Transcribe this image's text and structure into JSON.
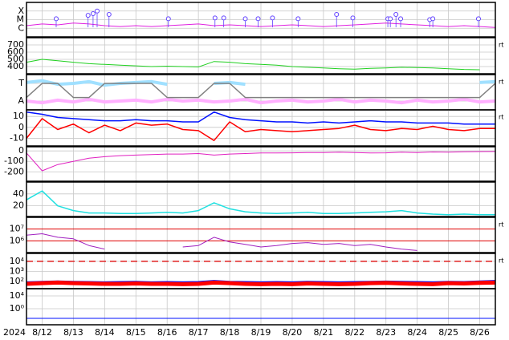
{
  "chart_data": [
    {
      "type": "line",
      "xlim": [
        11.5,
        26.5
      ],
      "ylim": [
        0,
        4
      ],
      "yticks": [
        {
          "value": 1,
          "label": "C"
        },
        {
          "value": 2,
          "label": "M"
        },
        {
          "value": 3,
          "label": "X"
        }
      ],
      "x": [
        11.5,
        12,
        12.5,
        13,
        13.5,
        14,
        14.5,
        15,
        15.5,
        16,
        16.5,
        17,
        17.5,
        18,
        18.5,
        19,
        19.5,
        20,
        20.5,
        21,
        21.5,
        22,
        22.5,
        23,
        23.5,
        24,
        24.5,
        25,
        25.5,
        26,
        26.5
      ],
      "series": [
        {
          "color": "#e020e0",
          "values": [
            1.3,
            1.5,
            1.4,
            1.6,
            1.5,
            1.3,
            1.2,
            1.3,
            1.2,
            1.3,
            1.4,
            1.5,
            1.3,
            1.4,
            1.3,
            1.2,
            1.3,
            1.4,
            1.3,
            1.2,
            1.3,
            1.4,
            1.5,
            1.6,
            1.5,
            1.4,
            1.3,
            1.2,
            1.3,
            1.2,
            1.1
          ]
        }
      ],
      "events": {
        "color": "#6040ff",
        "x": [
          12.45,
          13.47,
          13.63,
          13.76,
          14.14,
          16.04,
          17.53,
          17.81,
          18.5,
          18.91,
          19.37,
          20.19,
          21.42,
          21.94,
          23.06,
          23.14,
          23.32,
          23.47,
          24.4,
          24.5,
          25.96
        ],
        "values": [
          2.1,
          2.5,
          2.7,
          3.0,
          2.6,
          2.1,
          2.2,
          2.2,
          2.1,
          2.1,
          2.2,
          2.1,
          2.6,
          2.2,
          2.1,
          2.1,
          2.6,
          2.1,
          2.0,
          2.1,
          2.1
        ]
      }
    },
    {
      "type": "line",
      "xlim": [
        11.5,
        26.5
      ],
      "ylim": [
        300,
        800
      ],
      "yticks": [
        400,
        500,
        600,
        700
      ],
      "right_label": "rt",
      "x": [
        11.5,
        12,
        12.5,
        13,
        13.5,
        14,
        14.5,
        15,
        15.5,
        16,
        16.5,
        17,
        17.5,
        18,
        18.5,
        19,
        19.5,
        20,
        20.5,
        21,
        21.5,
        22,
        22.5,
        23,
        23.5,
        24,
        24.5,
        25,
        25.5,
        26,
        26.5
      ],
      "series": [
        {
          "color": "#20d020",
          "values": [
            460,
            500,
            480,
            460,
            440,
            430,
            420,
            410,
            400,
            405,
            400,
            395,
            470,
            460,
            440,
            430,
            420,
            400,
            390,
            380,
            370,
            365,
            375,
            380,
            390,
            385,
            380,
            370,
            360,
            355,
            null
          ]
        }
      ]
    },
    {
      "type": "line",
      "xlim": [
        11.5,
        26.5
      ],
      "ylim": [
        0,
        4
      ],
      "yticks": [
        {
          "value": 1,
          "label": "A"
        },
        {
          "value": 3,
          "label": "T"
        }
      ],
      "right_label": "rt",
      "x": [
        11.5,
        12,
        12.5,
        13,
        13.5,
        14,
        14.5,
        15,
        15.5,
        16,
        16.5,
        17,
        17.5,
        18,
        18.5,
        19,
        19.5,
        20,
        20.5,
        21,
        21.5,
        22,
        22.5,
        23,
        23.5,
        24,
        24.5,
        25,
        25.5,
        26,
        26.5
      ],
      "series": [
        {
          "color": "#ffb0ff",
          "width": 4,
          "values": [
            1.0,
            0.8,
            1.1,
            0.9,
            1.2,
            0.9,
            1.0,
            1.1,
            0.9,
            1.2,
            1.0,
            1.1,
            0.9,
            1.0,
            1.2,
            0.8,
            1.0,
            1.1,
            0.9,
            1.0,
            1.2,
            0.9,
            1.1,
            1.0,
            0.8,
            1.1,
            0.9,
            1.0,
            1.2,
            0.9,
            1.0
          ]
        },
        {
          "color": "#a0e0ff",
          "width": 4,
          "values": [
            3.1,
            3.3,
            2.9,
            3.0,
            3.2,
            2.8,
            3.0,
            3.1,
            3.2,
            2.9,
            null,
            null,
            3.0,
            3.1,
            2.9,
            null,
            null,
            null,
            null,
            null,
            null,
            null,
            null,
            null,
            null,
            null,
            null,
            null,
            null,
            3.1,
            3.2
          ]
        },
        {
          "color": "#808080",
          "width": 1.5,
          "values": [
            1.4,
            3,
            3,
            1.4,
            1.4,
            3,
            3,
            3,
            3,
            1.4,
            1.4,
            1.4,
            3,
            3,
            1.4,
            1.4,
            1.4,
            1.4,
            1.4,
            1.4,
            1.4,
            1.4,
            1.4,
            1.4,
            1.4,
            1.4,
            1.4,
            1.4,
            1.4,
            1.4,
            3
          ]
        }
      ]
    },
    {
      "type": "line",
      "xlim": [
        11.5,
        26.5
      ],
      "ylim": [
        -17,
        16
      ],
      "yticks": [
        -10,
        0,
        10
      ],
      "right_label": "rt",
      "x": [
        11.5,
        12,
        12.5,
        13,
        13.5,
        14,
        14.5,
        15,
        15.5,
        16,
        16.5,
        17,
        17.5,
        18,
        18.5,
        19,
        19.5,
        20,
        20.5,
        21,
        21.5,
        22,
        22.5,
        23,
        23.5,
        24,
        24.5,
        25,
        25.5,
        26,
        26.5
      ],
      "series": [
        {
          "color": "#0010ff",
          "width": 1.5,
          "values": [
            14,
            12,
            9,
            8,
            7,
            6,
            6,
            7,
            6,
            6,
            5,
            5,
            14,
            9,
            7,
            6,
            5,
            5,
            4,
            5,
            4,
            5,
            6,
            5,
            5,
            4,
            4,
            4,
            3,
            3,
            3
          ]
        },
        {
          "color": "#ff0000",
          "width": 1.5,
          "values": [
            -10,
            8,
            -2,
            3,
            -5,
            2,
            -3,
            4,
            2,
            3,
            -2,
            -3,
            -12,
            5,
            -4,
            -2,
            -3,
            -4,
            -3,
            -2,
            -1,
            2,
            -2,
            -3,
            -1,
            -2,
            1,
            -2,
            -3,
            -1,
            -1
          ]
        }
      ]
    },
    {
      "type": "line",
      "xlim": [
        11.5,
        26.5
      ],
      "ylim": [
        -290,
        40
      ],
      "yticks": [
        -200,
        -100,
        0
      ],
      "x": [
        11.5,
        12,
        12.5,
        13,
        13.5,
        14,
        14.5,
        15,
        15.5,
        16,
        16.5,
        17,
        17.5,
        18,
        18.5,
        19,
        19.5,
        20,
        20.5,
        21,
        21.5,
        22,
        22.5,
        23,
        23.5,
        24,
        24.5,
        25,
        25.5,
        26,
        26.5
      ],
      "series": [
        {
          "color": "#e020c0",
          "values": [
            -20,
            -190,
            -130,
            -100,
            -70,
            -55,
            -45,
            -40,
            -35,
            -30,
            -30,
            -25,
            -40,
            -30,
            -25,
            -20,
            -20,
            -18,
            -15,
            -15,
            -12,
            -15,
            -20,
            -18,
            -12,
            -15,
            -10,
            -12,
            -8,
            -6,
            -5
          ]
        }
      ]
    },
    {
      "type": "line",
      "xlim": [
        11.5,
        26.5
      ],
      "ylim": [
        2,
        60
      ],
      "yticks": [
        20,
        40
      ],
      "x": [
        11.5,
        12,
        12.5,
        13,
        13.5,
        14,
        14.5,
        15,
        15.5,
        16,
        16.5,
        17,
        17.5,
        18,
        18.5,
        19,
        19.5,
        20,
        20.5,
        21,
        21.5,
        22,
        22.5,
        23,
        23.5,
        24,
        24.5,
        25,
        25.5,
        26,
        26.5
      ],
      "series": [
        {
          "color": "#20e0e0",
          "width": 1.5,
          "values": [
            30,
            45,
            20,
            12,
            8,
            8,
            7,
            7,
            8,
            9,
            8,
            12,
            25,
            15,
            10,
            8,
            7,
            8,
            9,
            7,
            7,
            8,
            9,
            10,
            12,
            8,
            6,
            5,
            6,
            5,
            5
          ]
        }
      ]
    },
    {
      "type": "line",
      "log": true,
      "xlim": [
        11.5,
        26.5
      ],
      "ylim": [
        100000,
        100000000
      ],
      "grid_color": "#e00000",
      "right_label": "rt",
      "yticks": [
        {
          "value": 1000000,
          "label": "10⁶"
        },
        {
          "value": 10000000,
          "label": "10⁷"
        }
      ],
      "x": [
        11.5,
        12,
        12.5,
        13,
        13.5,
        14,
        14.5,
        15,
        15.5,
        16,
        16.5,
        17,
        17.5,
        18,
        18.5,
        19,
        19.5,
        20,
        20.5,
        21,
        21.5,
        22,
        22.5,
        23,
        23.5,
        24,
        24.5,
        25,
        25.5,
        26,
        26.5
      ],
      "series": [
        {
          "color": "#a020c0",
          "values": [
            3000000,
            4000000,
            2000000,
            1500000,
            400000,
            200000,
            null,
            null,
            null,
            null,
            300000,
            400000,
            2000000,
            800000,
            500000,
            300000,
            400000,
            600000,
            700000,
            500000,
            600000,
            400000,
            500000,
            300000,
            200000,
            150000,
            null,
            null,
            null,
            null,
            null
          ]
        }
      ]
    },
    {
      "type": "line",
      "log": true,
      "xlim": [
        11.5,
        26.5
      ],
      "ylim": [
        20,
        60000
      ],
      "threshold": 10000,
      "threshold_color": "#e02020",
      "right_label": "rt",
      "yticks": [
        {
          "value": 100,
          "label": "10²"
        },
        {
          "value": 1000,
          "label": "10³"
        },
        {
          "value": 10000,
          "label": "10⁴"
        }
      ],
      "x": [
        11.5,
        12,
        12.5,
        13,
        13.5,
        14,
        14.5,
        15,
        15.5,
        16,
        16.5,
        17,
        17.5,
        18,
        18.5,
        19,
        19.5,
        20,
        20.5,
        21,
        21.5,
        22,
        22.5,
        23,
        23.5,
        24,
        24.5,
        25,
        25.5,
        26,
        26.5
      ],
      "series": [
        {
          "color": "#0010ff",
          "width": 3,
          "values": [
            80,
            90,
            100,
            90,
            85,
            80,
            85,
            90,
            80,
            85,
            80,
            85,
            110,
            90,
            85,
            80,
            85,
            80,
            90,
            85,
            80,
            85,
            90,
            95,
            90,
            85,
            80,
            90,
            85,
            100,
            110
          ]
        },
        {
          "color": "#ff0000",
          "width": 5,
          "values": [
            60,
            70,
            80,
            70,
            65,
            60,
            60,
            65,
            60,
            60,
            55,
            60,
            80,
            70,
            60,
            55,
            60,
            55,
            65,
            60,
            55,
            60,
            70,
            75,
            65,
            60,
            55,
            70,
            65,
            75,
            80
          ]
        }
      ]
    },
    {
      "type": "line",
      "log": true,
      "xlim": [
        11.5,
        26.5
      ],
      "ylim": [
        1e-05,
        1800000
      ],
      "yticks": [
        {
          "value": 1,
          "label": "10⁰"
        },
        {
          "value": 10000,
          "label": "10⁴"
        }
      ],
      "x": [
        11.5,
        12,
        12.5,
        13,
        13.5,
        14,
        14.5,
        15,
        15.5,
        16,
        16.5,
        17,
        17.5,
        18,
        18.5,
        19,
        19.5,
        20,
        20.5,
        21,
        21.5,
        22,
        22.5,
        23,
        23.5,
        24,
        24.5,
        25,
        25.5,
        26,
        26.5
      ],
      "series": [
        {
          "color": "#0010ff",
          "values": [
            0.001,
            0.001,
            0.001,
            0.001,
            0.001,
            0.001,
            0.001,
            0.001,
            0.001,
            0.001,
            0.001,
            0.001,
            0.001,
            0.001,
            0.001,
            0.001,
            0.001,
            0.001,
            0.001,
            0.001,
            0.001,
            0.001,
            0.001,
            0.001,
            0.001,
            0.001,
            0.001,
            0.001,
            0.001,
            0.001,
            0.001
          ]
        }
      ],
      "year_label": "2024",
      "xticks": [
        {
          "value": 12,
          "label": "8/12"
        },
        {
          "value": 13,
          "label": "8/13"
        },
        {
          "value": 14,
          "label": "8/14"
        },
        {
          "value": 15,
          "label": "8/15"
        },
        {
          "value": 16,
          "label": "8/16"
        },
        {
          "value": 17,
          "label": "8/17"
        },
        {
          "value": 18,
          "label": "8/18"
        },
        {
          "value": 19,
          "label": "8/19"
        },
        {
          "value": 20,
          "label": "8/20"
        },
        {
          "value": 21,
          "label": "8/21"
        },
        {
          "value": 22,
          "label": "8/22"
        },
        {
          "value": 23,
          "label": "8/23"
        },
        {
          "value": 24,
          "label": "8/24"
        },
        {
          "value": 25,
          "label": "8/25"
        },
        {
          "value": 26,
          "label": "8/26"
        }
      ]
    }
  ]
}
